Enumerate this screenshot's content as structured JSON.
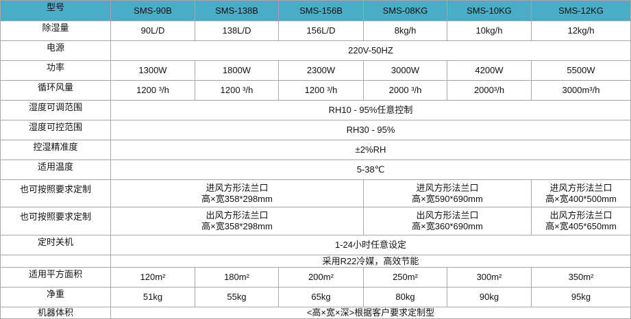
{
  "header": {
    "label": "型号",
    "models": [
      "SMS-90B",
      "SMS-138B",
      "SMS-156B",
      "SMS-08KG",
      "SMS-10KG",
      "SMS-12KG"
    ]
  },
  "rows": {
    "dehum": {
      "label": "除湿量",
      "values": [
        "90L/D",
        "138L/D",
        "156L/D",
        "8kg/h",
        "10kg/h",
        "12kg/h"
      ]
    },
    "power_supply": {
      "label": "电源",
      "value": "220V-50HZ"
    },
    "power": {
      "label": "功率",
      "values": [
        "1300W",
        "1800W",
        "2300W",
        "3000W",
        "4200W",
        "5500W"
      ]
    },
    "airflow": {
      "label": "循环风量",
      "values": [
        "1200 ³/h",
        "1200 ³/h",
        "1200 ³/h",
        "2000 ³/h",
        "2000³/h",
        "3000m³/h"
      ]
    },
    "hum_adjust": {
      "label": "湿度可调范围",
      "value": "RH10 - 95%任意控制"
    },
    "hum_control": {
      "label": "湿度可控范围",
      "value": "RH30 - 95%"
    },
    "accuracy": {
      "label": "控湿精准度",
      "value": "±2%RH"
    },
    "temp": {
      "label": "适用温度",
      "value": "5-38℃"
    },
    "inlet": {
      "label": "也可按照要求定制",
      "groups": [
        {
          "line1": "进风方形法兰口",
          "line2": "高×宽358*298mm"
        },
        {
          "line1": "进风方形法兰口",
          "line2": "高×宽590*690mm"
        },
        {
          "line1": "进风方形法兰口",
          "line2": "高×宽400*500mm"
        }
      ]
    },
    "outlet": {
      "label": "也可按照要求定制",
      "groups": [
        {
          "line1": "出风方形法兰口",
          "line2": "高×宽358*298mm"
        },
        {
          "line1": "出风方形法兰口",
          "line2": "高×宽360*690mm"
        },
        {
          "line1": "出风方形法兰口",
          "line2": "高×宽405*650mm"
        }
      ]
    },
    "timer": {
      "label": "定时关机",
      "value": "1-24小时任意设定"
    },
    "refrigerant": {
      "label": "",
      "value": "采用R22冷媒，高效节能"
    },
    "area": {
      "label": "适用平方面积",
      "values": [
        "120m²",
        "180m²",
        "200m²",
        "250m²",
        "300m²",
        "350m²"
      ]
    },
    "weight": {
      "label": "净重",
      "values": [
        "51kg",
        "55kg",
        "65kg",
        "80kg",
        "90kg",
        "95kg"
      ]
    },
    "volume": {
      "label": "机器体积",
      "value": "<高×宽×深>根据客户要求定制型"
    }
  },
  "colors": {
    "header_bg": "#4bacc6",
    "border": "#a6a6a6"
  }
}
